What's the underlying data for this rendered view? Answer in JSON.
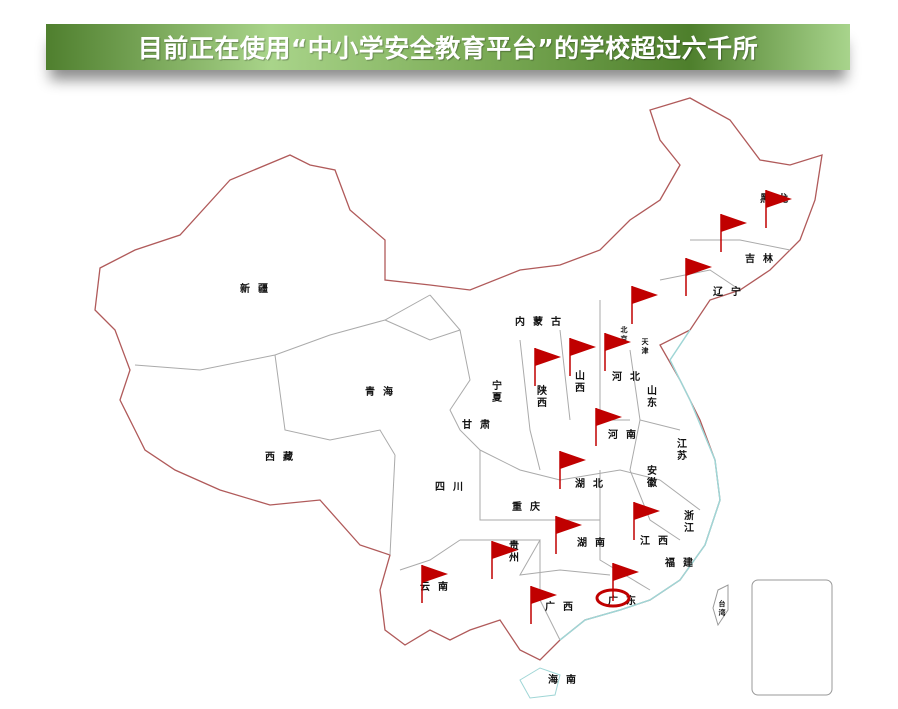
{
  "title": "目前正在使用“中小学安全教育平台”的学校超过六千所",
  "colors": {
    "flag": "#c00000",
    "border": "#b05a5a",
    "province": "#999999",
    "coast": "#9fd6d6"
  },
  "provinces": [
    {
      "name": "新疆"
    },
    {
      "name": "西藏"
    },
    {
      "name": "青海"
    },
    {
      "name": "内蒙古"
    },
    {
      "name": "甘肃"
    },
    {
      "name": "宁夏"
    },
    {
      "name": "陕西"
    },
    {
      "name": "山西"
    },
    {
      "name": "河北"
    },
    {
      "name": "北京"
    },
    {
      "name": "天津"
    },
    {
      "name": "山东"
    },
    {
      "name": "河南"
    },
    {
      "name": "江苏"
    },
    {
      "name": "安徽"
    },
    {
      "name": "湖北"
    },
    {
      "name": "四川"
    },
    {
      "name": "重庆"
    },
    {
      "name": "贵州"
    },
    {
      "name": "湖南"
    },
    {
      "name": "江西"
    },
    {
      "name": "浙江"
    },
    {
      "name": "福建"
    },
    {
      "name": "云南"
    },
    {
      "name": "广西"
    },
    {
      "name": "广东"
    },
    {
      "name": "海南"
    },
    {
      "name": "台湾"
    },
    {
      "name": "辽宁"
    },
    {
      "name": "吉林"
    },
    {
      "name": "黑龙"
    }
  ],
  "flagged_provinces": [
    "黑龙江",
    "黑龙江",
    "吉林",
    "辽宁",
    "北京",
    "山西",
    "陕西",
    "河北",
    "河南",
    "湖北",
    "江西",
    "湖南",
    "贵州",
    "云南",
    "广西",
    "广东"
  ],
  "highlighted": "广东"
}
